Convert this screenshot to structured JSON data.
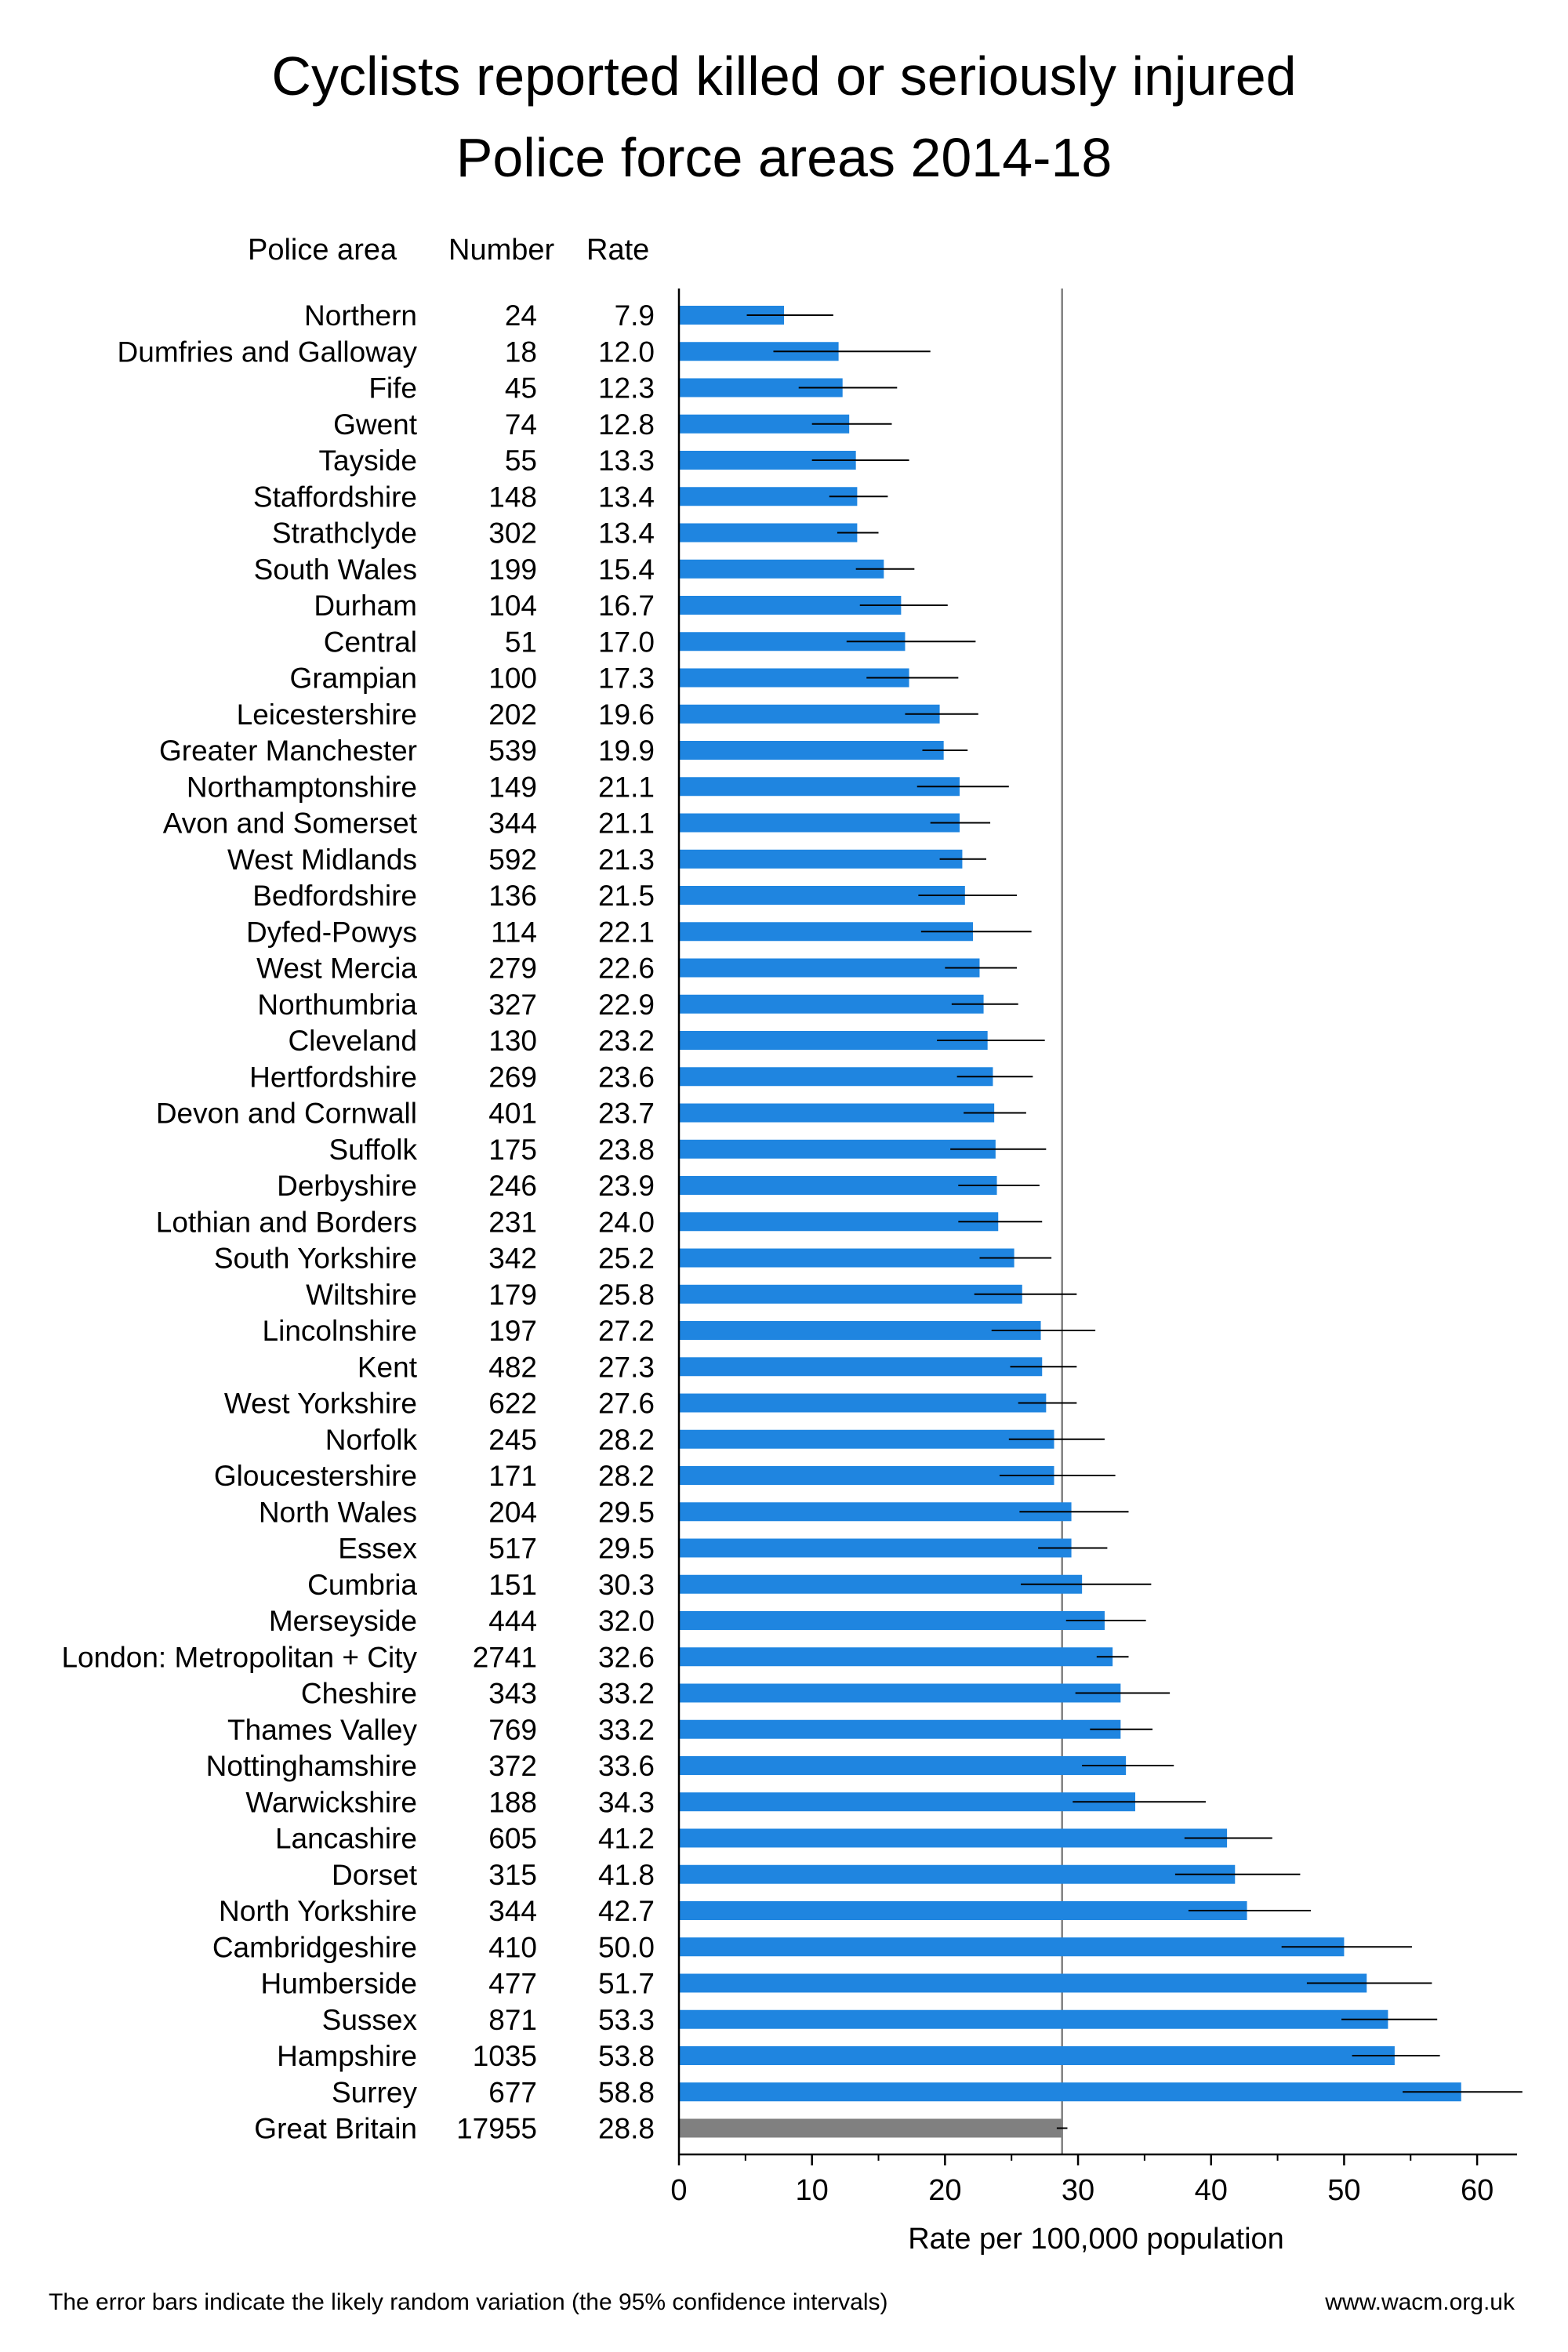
{
  "title_line1": "Cyclists reported killed or seriously injured",
  "title_line2": "Police force areas 2014-18",
  "headers": {
    "area": "Police area",
    "number": "Number",
    "rate": "Rate"
  },
  "footer": {
    "note": "The error bars indicate the likely random variation (the 95% confidence intervals)",
    "website": "www.wacm.org.uk"
  },
  "colors": {
    "bar": "#1f85e0",
    "total_bar": "#808080",
    "reference_line": "#808080"
  },
  "chart_data": {
    "type": "bar",
    "orientation": "horizontal",
    "xlabel": "Rate per 100,000 population",
    "xlim": [
      0,
      63
    ],
    "xticks": [
      0,
      10,
      20,
      30,
      40,
      50,
      60
    ],
    "reference_value": 28.8,
    "rows": [
      {
        "area": "Northern",
        "number": "24",
        "rate": "7.9",
        "value": 7.9,
        "ci": [
          5.1,
          11.6
        ]
      },
      {
        "area": "Dumfries and Galloway",
        "number": "18",
        "rate": "12.0",
        "value": 12.0,
        "ci": [
          7.1,
          18.9
        ]
      },
      {
        "area": "Fife",
        "number": "45",
        "rate": "12.3",
        "value": 12.3,
        "ci": [
          9.0,
          16.4
        ]
      },
      {
        "area": "Gwent",
        "number": "74",
        "rate": "12.8",
        "value": 12.8,
        "ci": [
          10.0,
          16.0
        ]
      },
      {
        "area": "Tayside",
        "number": "55",
        "rate": "13.3",
        "value": 13.3,
        "ci": [
          10.0,
          17.3
        ]
      },
      {
        "area": "Staffordshire",
        "number": "148",
        "rate": "13.4",
        "value": 13.4,
        "ci": [
          11.3,
          15.7
        ]
      },
      {
        "area": "Strathclyde",
        "number": "302",
        "rate": "13.4",
        "value": 13.4,
        "ci": [
          11.9,
          15.0
        ]
      },
      {
        "area": "South Wales",
        "number": "199",
        "rate": "15.4",
        "value": 15.4,
        "ci": [
          13.3,
          17.7
        ]
      },
      {
        "area": "Durham",
        "number": "104",
        "rate": "16.7",
        "value": 16.7,
        "ci": [
          13.6,
          20.2
        ]
      },
      {
        "area": "Central",
        "number": "51",
        "rate": "17.0",
        "value": 17.0,
        "ci": [
          12.6,
          22.3
        ]
      },
      {
        "area": "Grampian",
        "number": "100",
        "rate": "17.3",
        "value": 17.3,
        "ci": [
          14.1,
          21.0
        ]
      },
      {
        "area": "Leicestershire",
        "number": "202",
        "rate": "19.6",
        "value": 19.6,
        "ci": [
          17.0,
          22.5
        ]
      },
      {
        "area": "Greater Manchester",
        "number": "539",
        "rate": "19.9",
        "value": 19.9,
        "ci": [
          18.3,
          21.7
        ]
      },
      {
        "area": "Northamptonshire",
        "number": "149",
        "rate": "21.1",
        "value": 21.1,
        "ci": [
          17.9,
          24.8
        ]
      },
      {
        "area": "Avon and Somerset",
        "number": "344",
        "rate": "21.1",
        "value": 21.1,
        "ci": [
          18.9,
          23.4
        ]
      },
      {
        "area": "West Midlands",
        "number": "592",
        "rate": "21.3",
        "value": 21.3,
        "ci": [
          19.6,
          23.1
        ]
      },
      {
        "area": "Bedfordshire",
        "number": "136",
        "rate": "21.5",
        "value": 21.5,
        "ci": [
          18.0,
          25.4
        ]
      },
      {
        "area": "Dyfed-Powys",
        "number": "114",
        "rate": "22.1",
        "value": 22.1,
        "ci": [
          18.2,
          26.5
        ]
      },
      {
        "area": "West Mercia",
        "number": "279",
        "rate": "22.6",
        "value": 22.6,
        "ci": [
          20.0,
          25.4
        ]
      },
      {
        "area": "Northumbria",
        "number": "327",
        "rate": "22.9",
        "value": 22.9,
        "ci": [
          20.5,
          25.5
        ]
      },
      {
        "area": "Cleveland",
        "number": "130",
        "rate": "23.2",
        "value": 23.2,
        "ci": [
          19.4,
          27.5
        ]
      },
      {
        "area": "Hertfordshire",
        "number": "269",
        "rate": "23.6",
        "value": 23.6,
        "ci": [
          20.9,
          26.6
        ]
      },
      {
        "area": "Devon and Cornwall",
        "number": "401",
        "rate": "23.7",
        "value": 23.7,
        "ci": [
          21.4,
          26.1
        ]
      },
      {
        "area": "Suffolk",
        "number": "175",
        "rate": "23.8",
        "value": 23.8,
        "ci": [
          20.4,
          27.6
        ]
      },
      {
        "area": "Derbyshire",
        "number": "246",
        "rate": "23.9",
        "value": 23.9,
        "ci": [
          21.0,
          27.1
        ]
      },
      {
        "area": "Lothian and Borders",
        "number": "231",
        "rate": "24.0",
        "value": 24.0,
        "ci": [
          21.0,
          27.3
        ]
      },
      {
        "area": "South Yorkshire",
        "number": "342",
        "rate": "25.2",
        "value": 25.2,
        "ci": [
          22.6,
          28.0
        ]
      },
      {
        "area": "Wiltshire",
        "number": "179",
        "rate": "25.8",
        "value": 25.8,
        "ci": [
          22.2,
          29.9
        ]
      },
      {
        "area": "Lincolnshire",
        "number": "197",
        "rate": "27.2",
        "value": 27.2,
        "ci": [
          23.5,
          31.3
        ]
      },
      {
        "area": "Kent",
        "number": "482",
        "rate": "27.3",
        "value": 27.3,
        "ci": [
          24.9,
          29.9
        ]
      },
      {
        "area": "West Yorkshire",
        "number": "622",
        "rate": "27.6",
        "value": 27.6,
        "ci": [
          25.5,
          29.9
        ]
      },
      {
        "area": "Norfolk",
        "number": "245",
        "rate": "28.2",
        "value": 28.2,
        "ci": [
          24.8,
          32.0
        ]
      },
      {
        "area": "Gloucestershire",
        "number": "171",
        "rate": "28.2",
        "value": 28.2,
        "ci": [
          24.1,
          32.8
        ]
      },
      {
        "area": "North Wales",
        "number": "204",
        "rate": "29.5",
        "value": 29.5,
        "ci": [
          25.6,
          33.8
        ]
      },
      {
        "area": "Essex",
        "number": "517",
        "rate": "29.5",
        "value": 29.5,
        "ci": [
          27.0,
          32.2
        ]
      },
      {
        "area": "Cumbria",
        "number": "151",
        "rate": "30.3",
        "value": 30.3,
        "ci": [
          25.7,
          35.5
        ]
      },
      {
        "area": "Merseyside",
        "number": "444",
        "rate": "32.0",
        "value": 32.0,
        "ci": [
          29.1,
          35.1
        ]
      },
      {
        "area": "London: Metropolitan + City",
        "number": "2741",
        "rate": "32.6",
        "value": 32.6,
        "ci": [
          31.4,
          33.8
        ]
      },
      {
        "area": "Cheshire",
        "number": "343",
        "rate": "33.2",
        "value": 33.2,
        "ci": [
          29.8,
          36.9
        ]
      },
      {
        "area": "Thames Valley",
        "number": "769",
        "rate": "33.2",
        "value": 33.2,
        "ci": [
          30.9,
          35.6
        ]
      },
      {
        "area": "Nottinghamshire",
        "number": "372",
        "rate": "33.6",
        "value": 33.6,
        "ci": [
          30.3,
          37.2
        ]
      },
      {
        "area": "Warwickshire",
        "number": "188",
        "rate": "34.3",
        "value": 34.3,
        "ci": [
          29.6,
          39.6
        ]
      },
      {
        "area": "Lancashire",
        "number": "605",
        "rate": "41.2",
        "value": 41.2,
        "ci": [
          38.0,
          44.6
        ]
      },
      {
        "area": "Dorset",
        "number": "315",
        "rate": "41.8",
        "value": 41.8,
        "ci": [
          37.3,
          46.7
        ]
      },
      {
        "area": "North Yorkshire",
        "number": "344",
        "rate": "42.7",
        "value": 42.7,
        "ci": [
          38.3,
          47.5
        ]
      },
      {
        "area": "Cambridgeshire",
        "number": "410",
        "rate": "50.0",
        "value": 50.0,
        "ci": [
          45.3,
          55.1
        ]
      },
      {
        "area": "Humberside",
        "number": "477",
        "rate": "51.7",
        "value": 51.7,
        "ci": [
          47.2,
          56.6
        ]
      },
      {
        "area": "Sussex",
        "number": "871",
        "rate": "53.3",
        "value": 53.3,
        "ci": [
          49.8,
          57.0
        ]
      },
      {
        "area": "Hampshire",
        "number": "1035",
        "rate": "53.8",
        "value": 53.8,
        "ci": [
          50.6,
          57.2
        ]
      },
      {
        "area": "Surrey",
        "number": "677",
        "rate": "58.8",
        "value": 58.8,
        "ci": [
          54.4,
          63.4
        ]
      },
      {
        "area": "Great Britain",
        "number": "17955",
        "rate": "28.8",
        "value": 28.8,
        "ci": [
          28.4,
          29.2
        ],
        "total": true
      }
    ]
  }
}
